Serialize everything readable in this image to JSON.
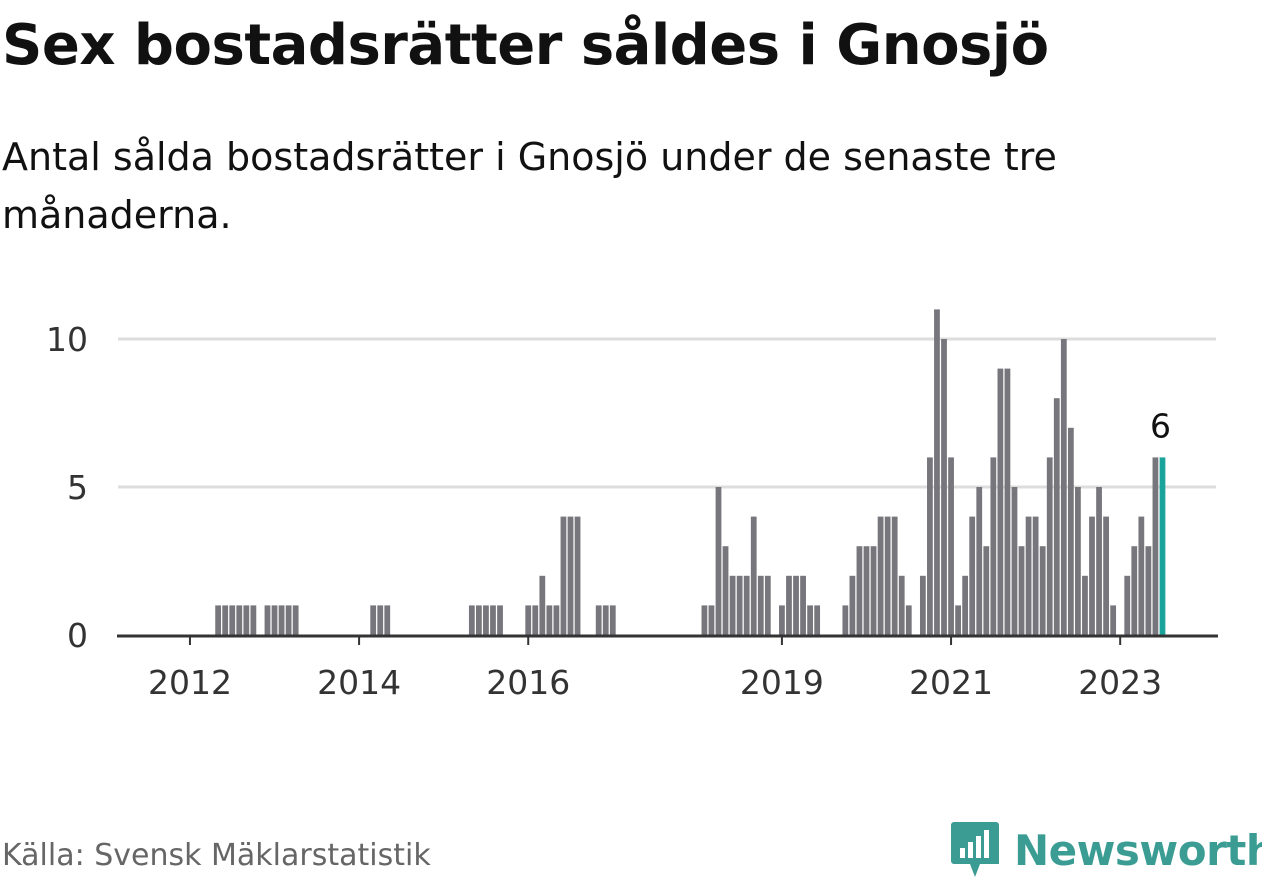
{
  "title": "Sex bostadsrätter såldes i Gnosjö",
  "subtitle": "Antal sålda bostadsrätter i Gnosjö under de senaste tre månaderna.",
  "source": "Källa: Svensk Mäklarstatistik",
  "brand": "Newsworthy",
  "colors": {
    "bar": "#77767c",
    "highlight": "#1aa39b",
    "grid": "#dddddd",
    "axis": "#333333",
    "brand": "#3a9c92"
  },
  "chart_data": {
    "type": "bar",
    "title": "Sex bostadsrätter såldes i Gnosjö",
    "xlabel": "",
    "ylabel": "",
    "ylim": [
      0,
      11.5
    ],
    "yticks": [
      0,
      5,
      10
    ],
    "xticks": [
      {
        "label": "2012",
        "month": 9
      },
      {
        "label": "2014",
        "month": 33
      },
      {
        "label": "2016",
        "month": 57
      },
      {
        "label": "2019",
        "month": 93
      },
      {
        "label": "2021",
        "month": 117
      },
      {
        "label": "2023",
        "month": 141
      }
    ],
    "start": "2011-05",
    "end": "2023-02",
    "highlight_label": "6",
    "series": [
      {
        "name": "Antal sålda bostadsrätter",
        "values": [
          0,
          0,
          0,
          0,
          0,
          0,
          0,
          0,
          0,
          0,
          0,
          0,
          0,
          1,
          1,
          1,
          1,
          1,
          1,
          0,
          1,
          1,
          1,
          1,
          1,
          0,
          0,
          0,
          0,
          0,
          0,
          0,
          0,
          0,
          0,
          1,
          1,
          1,
          0,
          0,
          0,
          0,
          0,
          0,
          0,
          0,
          0,
          0,
          0,
          1,
          1,
          1,
          1,
          1,
          0,
          0,
          0,
          1,
          1,
          2,
          1,
          1,
          4,
          4,
          4,
          0,
          0,
          1,
          1,
          1,
          0,
          0,
          0,
          0,
          0,
          0,
          0,
          0,
          0,
          0,
          0,
          0,
          1,
          1,
          5,
          3,
          2,
          2,
          2,
          4,
          2,
          2,
          0,
          1,
          2,
          2,
          2,
          1,
          1,
          0,
          0,
          0,
          1,
          2,
          3,
          3,
          3,
          4,
          4,
          4,
          2,
          1,
          0,
          2,
          6,
          11,
          10,
          6,
          1,
          2,
          4,
          5,
          3,
          6,
          9,
          9,
          5,
          3,
          4,
          4,
          3,
          6,
          8,
          10,
          7,
          5,
          2,
          4,
          5,
          4,
          1,
          0,
          2,
          3,
          4,
          3,
          6,
          6
        ]
      }
    ]
  }
}
